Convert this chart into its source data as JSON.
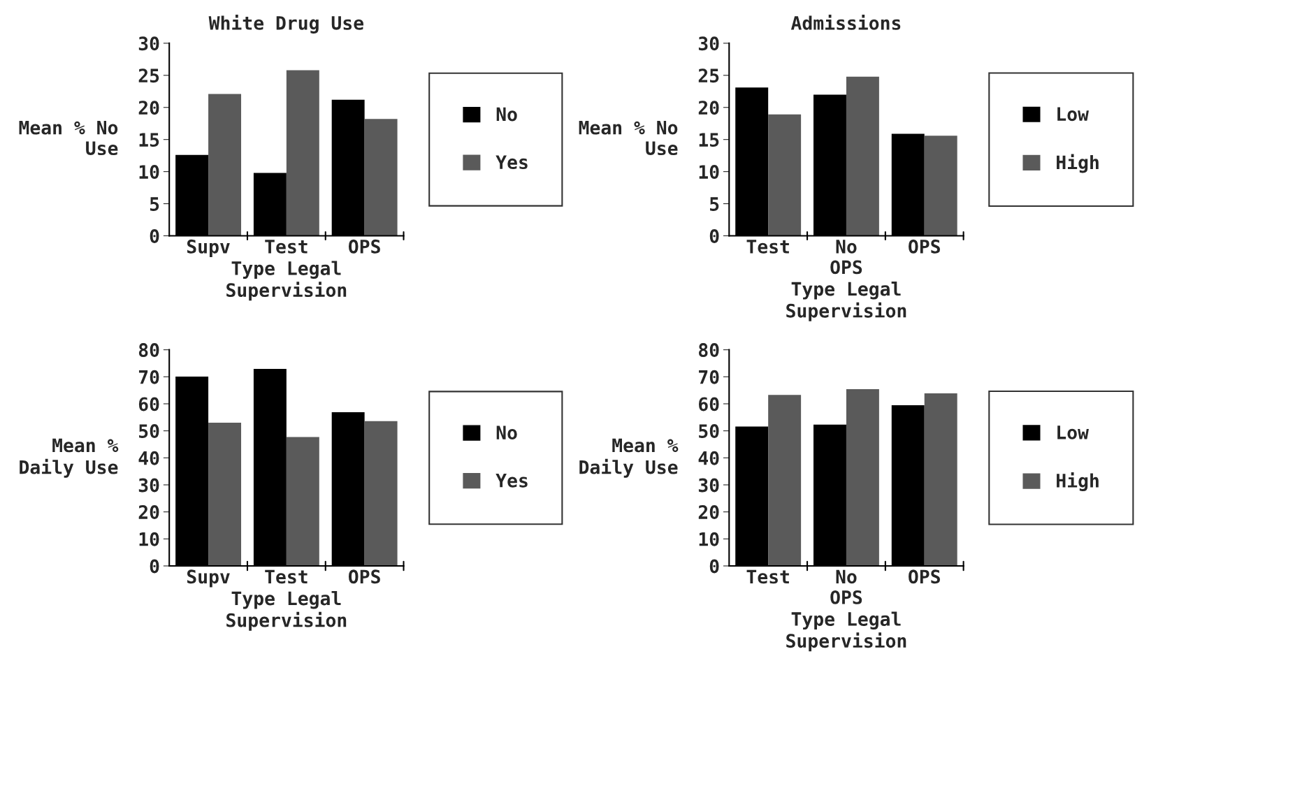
{
  "chart_data": [
    {
      "type": "bar",
      "title": "White Drug Use",
      "xlabel": "Type Legal\nSupervision",
      "ylabel": "Mean % No\nUse",
      "categories": [
        "Supv",
        "Test",
        "OPS"
      ],
      "ylim": [
        0,
        30
      ],
      "yticks": [
        0,
        5,
        10,
        15,
        20,
        25,
        30
      ],
      "legend": "right",
      "grid": false,
      "series": [
        {
          "name": "No",
          "color": "#000000",
          "values": [
            12.6,
            9.8,
            21.2
          ]
        },
        {
          "name": "Yes",
          "color": "#5a5a5a",
          "values": [
            22.1,
            25.8,
            18.2
          ]
        }
      ]
    },
    {
      "type": "bar",
      "title": "Admissions",
      "xlabel": "Type Legal\nSupervision",
      "ylabel": "Mean % No\nUse",
      "categories": [
        "Test",
        "No\nOPS",
        "OPS"
      ],
      "ylim": [
        0,
        30
      ],
      "yticks": [
        0,
        5,
        10,
        15,
        20,
        25,
        30
      ],
      "legend": "right",
      "grid": false,
      "series": [
        {
          "name": "Low",
          "color": "#000000",
          "values": [
            23.1,
            22.0,
            15.9
          ]
        },
        {
          "name": "High",
          "color": "#5a5a5a",
          "values": [
            18.9,
            24.8,
            15.6
          ]
        }
      ]
    },
    {
      "type": "bar",
      "xlabel": "Type Legal\nSupervision",
      "ylabel": "Mean %\nDaily Use",
      "categories": [
        "Supv",
        "Test",
        "OPS"
      ],
      "ylim": [
        0,
        80
      ],
      "yticks": [
        0,
        10,
        20,
        30,
        40,
        50,
        60,
        70,
        80
      ],
      "legend": "right",
      "grid": false,
      "series": [
        {
          "name": "No",
          "color": "#000000",
          "values": [
            70.1,
            72.9,
            56.9
          ]
        },
        {
          "name": "Yes",
          "color": "#5a5a5a",
          "values": [
            53.0,
            47.7,
            53.6
          ]
        }
      ]
    },
    {
      "type": "bar",
      "xlabel": "Type Legal\nSupervision",
      "ylabel": "Mean %\nDaily Use",
      "categories": [
        "Test",
        "No\nOPS",
        "OPS"
      ],
      "ylim": [
        0,
        80
      ],
      "yticks": [
        0,
        10,
        20,
        30,
        40,
        50,
        60,
        70,
        80
      ],
      "legend": "right",
      "grid": false,
      "series": [
        {
          "name": "Low",
          "color": "#000000",
          "values": [
            51.6,
            52.3,
            59.5
          ]
        },
        {
          "name": "High",
          "color": "#5a5a5a",
          "values": [
            63.3,
            65.4,
            63.9
          ]
        }
      ]
    }
  ]
}
